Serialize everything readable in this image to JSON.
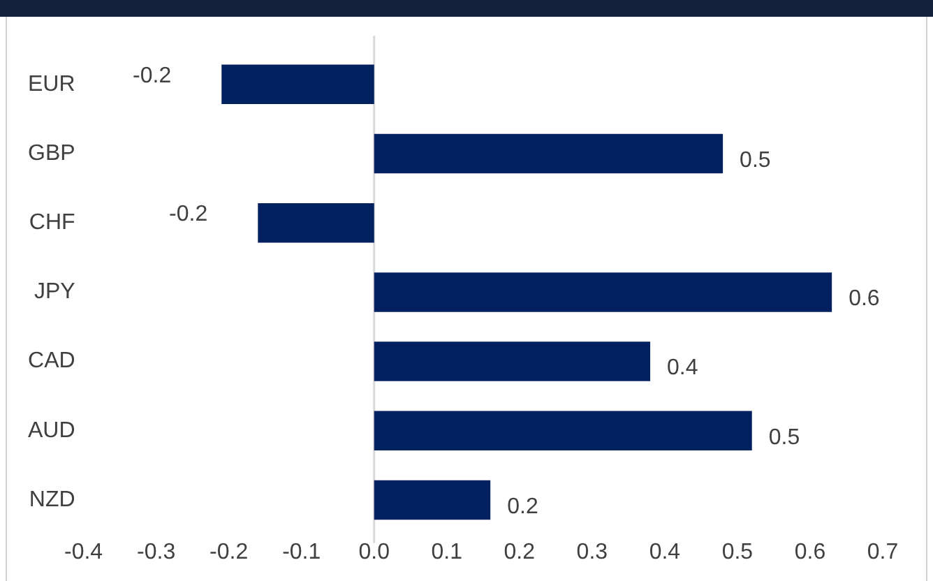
{
  "chart_data": {
    "type": "bar",
    "orientation": "horizontal",
    "categories": [
      "EUR",
      "GBP",
      "CHF",
      "JPY",
      "CAD",
      "AUD",
      "NZD"
    ],
    "values": [
      -0.21,
      0.48,
      -0.16,
      0.63,
      0.38,
      0.52,
      0.16
    ],
    "value_labels": [
      "-0.2",
      "0.5",
      "-0.2",
      "0.6",
      "0.4",
      "0.5",
      "0.2"
    ],
    "color": "#002060",
    "xlim": [
      -0.4,
      0.7
    ],
    "xticks": [
      -0.4,
      -0.3,
      -0.2,
      -0.1,
      {
        "value": 0,
        "label": "0.0"
      },
      0.1,
      0.2,
      0.3,
      0.4,
      0.5,
      0.6,
      0.7
    ],
    "ref_lines": [
      {
        "axis": "x",
        "value": 0,
        "color": "#d9d9d9"
      }
    ]
  }
}
